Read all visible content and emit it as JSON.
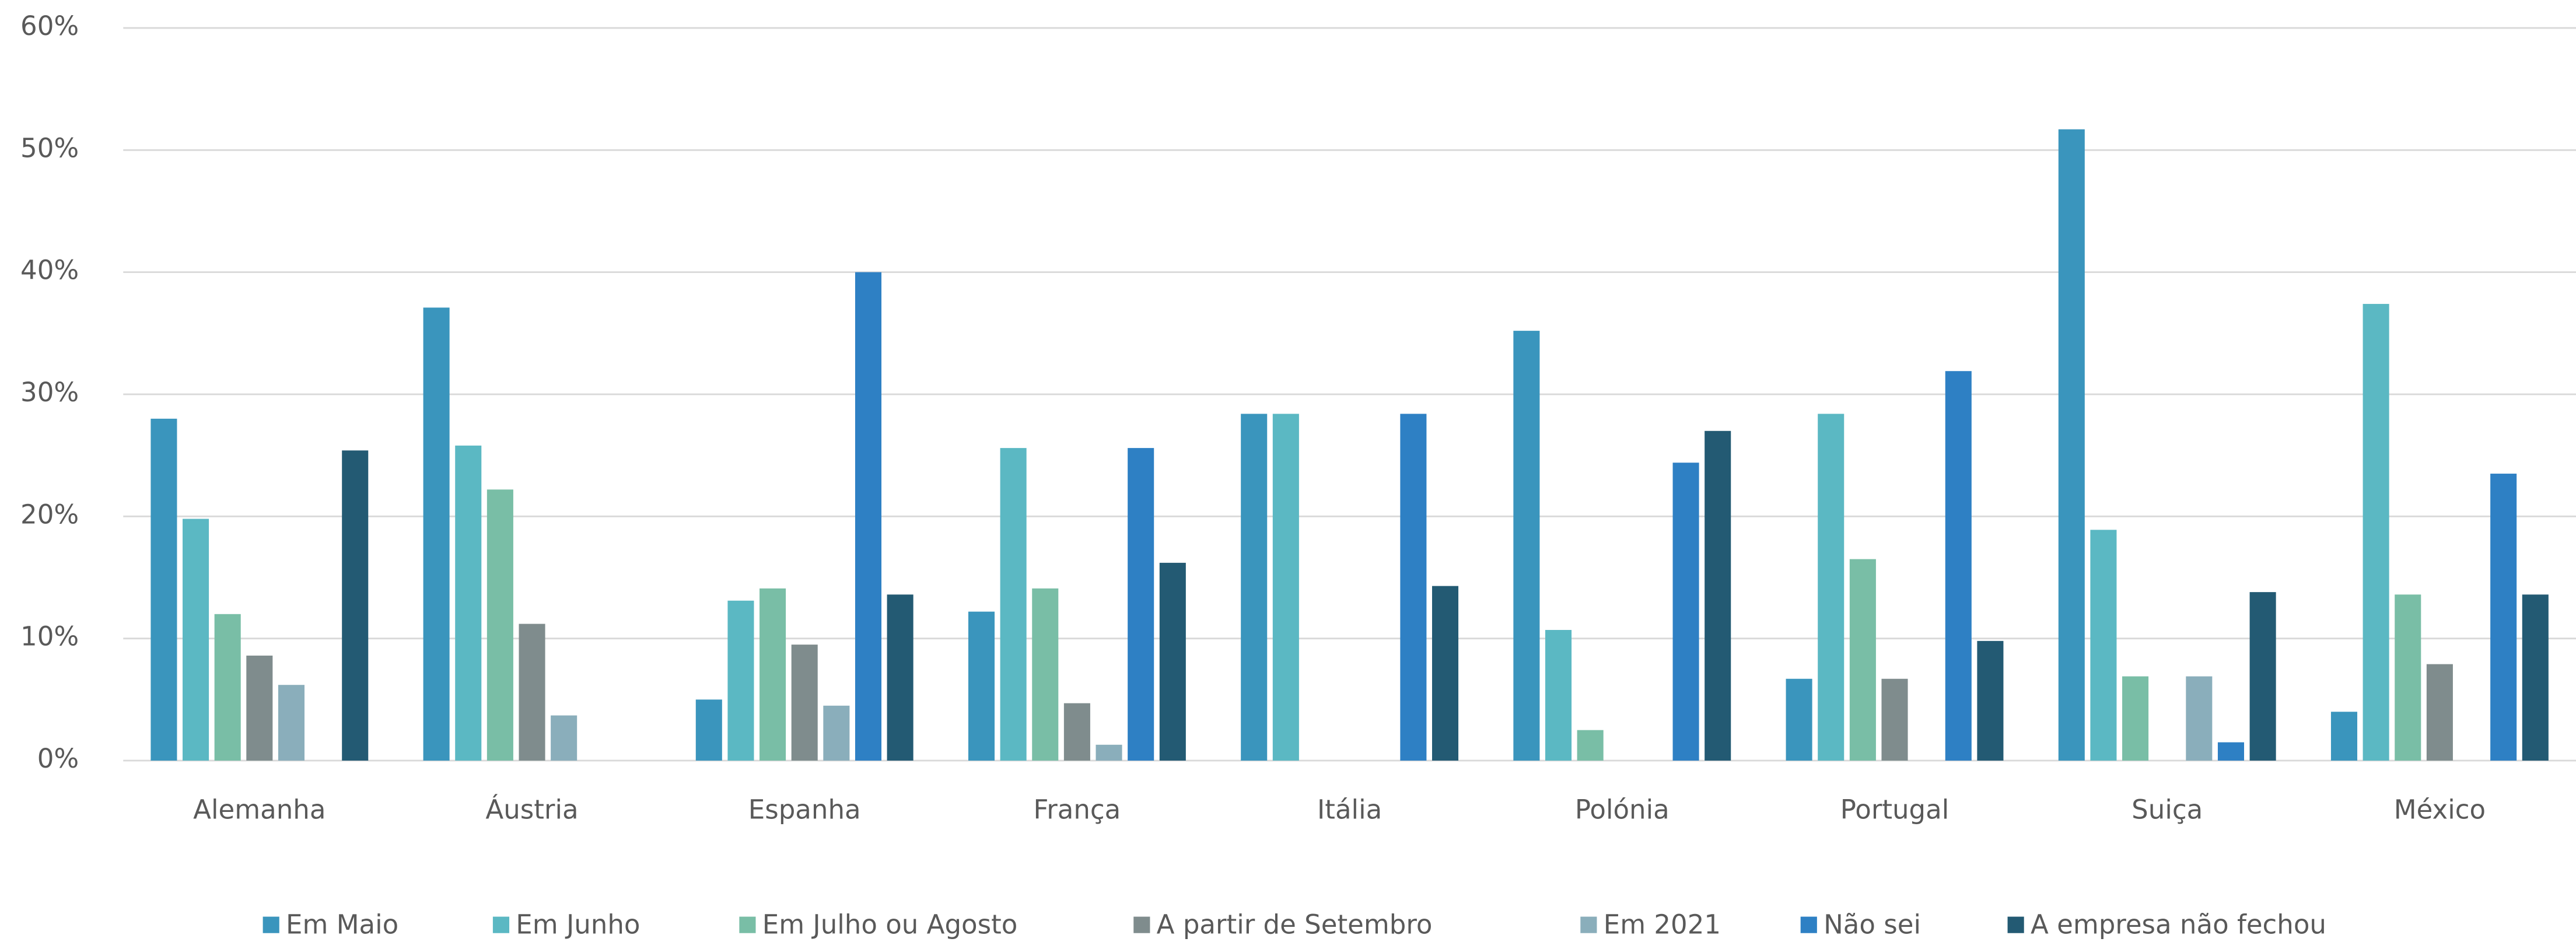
{
  "chart_data": {
    "type": "bar",
    "categories": [
      "Alemanha",
      "Áustria",
      "Espanha",
      "França",
      "Itália",
      "Polónia",
      "Portugal",
      "Suiça",
      "México"
    ],
    "series": [
      {
        "name": "Em Maio",
        "color": "#3a95bd",
        "values": [
          28,
          37.1,
          5,
          12.2,
          28.4,
          35.2,
          6.7,
          51.7,
          4
        ]
      },
      {
        "name": "Em Junho",
        "color": "#5bb8c3",
        "values": [
          19.8,
          25.8,
          13.1,
          25.6,
          28.4,
          10.7,
          28.4,
          18.9,
          37.4
        ]
      },
      {
        "name": "Em Julho ou Agosto",
        "color": "#79bea6",
        "values": [
          12,
          22.2,
          14.1,
          14.1,
          0,
          2.5,
          16.5,
          6.9,
          13.6
        ]
      },
      {
        "name": "A partir de Setembro",
        "color": "#7f8c8d",
        "values": [
          8.6,
          11.2,
          9.5,
          4.7,
          0,
          0,
          6.7,
          0,
          7.9
        ]
      },
      {
        "name": "Em 2021",
        "color": "#8aaebb",
        "values": [
          6.2,
          3.7,
          4.5,
          1.3,
          0,
          0,
          0,
          6.9,
          0
        ]
      },
      {
        "name": "Não sei",
        "color": "#2e80c4",
        "values": [
          0,
          0,
          40,
          25.6,
          28.4,
          24.4,
          31.9,
          1.5,
          23.5
        ]
      },
      {
        "name": "A empresa não fechou",
        "color": "#235a73",
        "values": [
          25.4,
          0,
          13.6,
          16.2,
          14.3,
          27,
          9.8,
          13.8,
          13.6
        ]
      }
    ],
    "ylim": [
      0,
      60
    ],
    "yticks": [
      {
        "value": 0,
        "label": "0%"
      },
      {
        "value": 10,
        "label": "10%"
      },
      {
        "value": 20,
        "label": "20%"
      },
      {
        "value": 30,
        "label": "30%"
      },
      {
        "value": 40,
        "label": "40%"
      },
      {
        "value": 50,
        "label": "50%"
      },
      {
        "value": 60,
        "label": "60%"
      }
    ],
    "grid": true,
    "legend": "bottom"
  }
}
